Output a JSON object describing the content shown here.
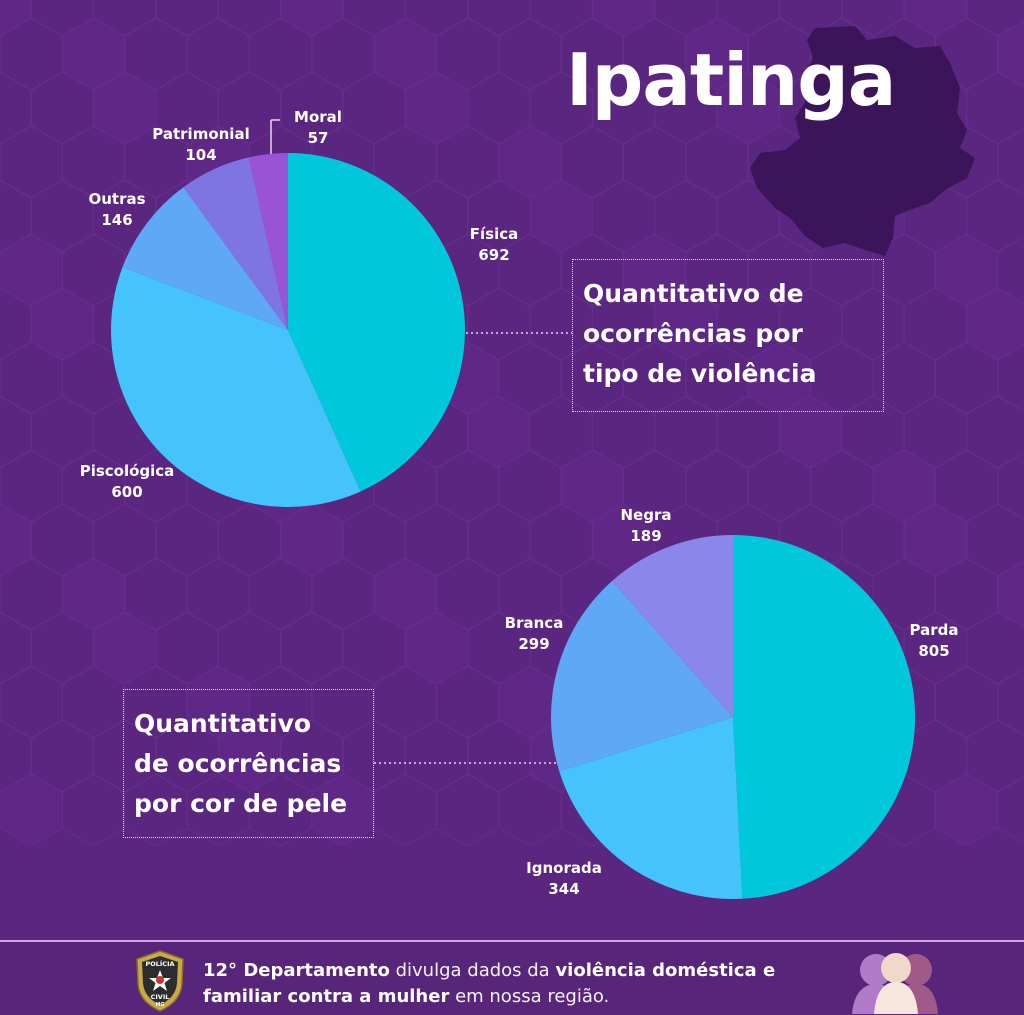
{
  "page": {
    "title": "Ipatinga"
  },
  "colors": {
    "background": "#5b2680",
    "hexagon": "#6a3191",
    "map": "#3b1459",
    "teal": "#00c8dc",
    "lightblue": "#45c4fb",
    "blue": "#5fa8f5",
    "periwinkle": "#8a86ea",
    "lavender": "#7e75e2",
    "purple": "#9b53d6"
  },
  "icons": {
    "badge": "policia-civil-badge-icon",
    "women": "women-group-icon",
    "map": "city-map-silhouette"
  },
  "chart_data": [
    {
      "type": "pie",
      "title": "Quantitativo de ocorrências por tipo de violência",
      "title_lines": [
        "Quantitativo de",
        "ocorrências por",
        "tipo de violência"
      ],
      "categories": [
        "Física",
        "Piscológica",
        "Outras",
        "Patrimonial",
        "Moral"
      ],
      "values": [
        692,
        600,
        146,
        104,
        57
      ],
      "value_labels": [
        "692",
        "600",
        "146",
        "104",
        "57"
      ],
      "colors": [
        "#00c8dc",
        "#45c4fb",
        "#5fa8f5",
        "#7e75e2",
        "#9b53d6"
      ]
    },
    {
      "type": "pie",
      "title": "Quantitativo de ocorrências por cor de pele",
      "title_lines": [
        "Quantitativo",
        "de ocorrências",
        "por cor de pele"
      ],
      "categories": [
        "Parda",
        "Ignorada",
        "Branca",
        "Negra"
      ],
      "values": [
        805,
        344,
        299,
        189
      ],
      "value_labels": [
        "805",
        "344",
        "299",
        "189"
      ],
      "colors": [
        "#00c8dc",
        "#45c4fb",
        "#5fa8f5",
        "#8a86ea"
      ]
    }
  ],
  "footer": {
    "badge_lines": [
      "POLÍCIA",
      "CIVIL",
      "MG"
    ],
    "bold_1": "12° Departamento",
    "text_1": " divulga dados da ",
    "bold_2": "violência doméstica e",
    "bold_3": "familiar contra a mulher",
    "text_2": " em nossa região."
  }
}
